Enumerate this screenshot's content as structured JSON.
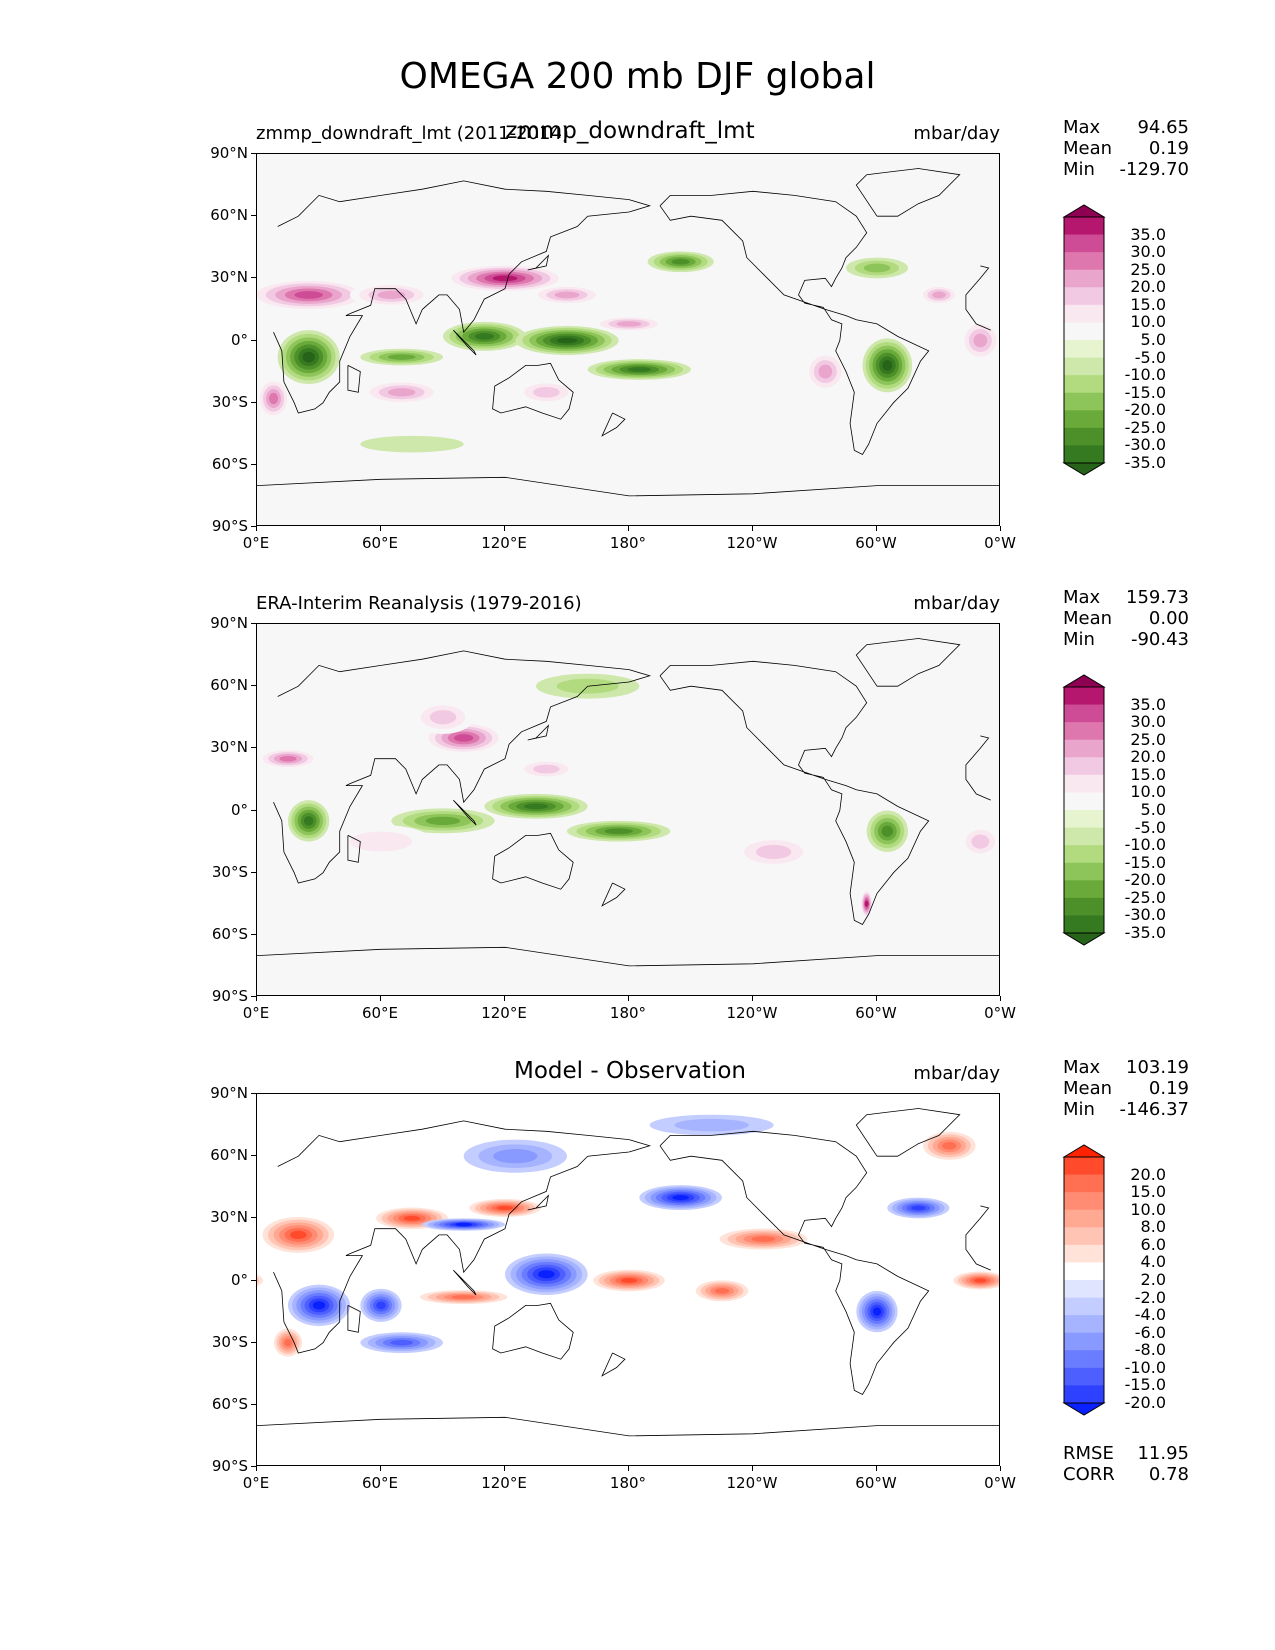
{
  "figure": {
    "title": "OMEGA 200 mb DJF global",
    "lat_ticks": [
      "90°N",
      "60°N",
      "30°N",
      "0°",
      "30°S",
      "60°S",
      "90°S"
    ],
    "lon_ticks": [
      "0°E",
      "60°E",
      "120°E",
      "180°",
      "120°W",
      "60°W",
      "0°W"
    ]
  },
  "panels": [
    {
      "id": "model",
      "left_title": "zmmp_downdraft_lmt (2011-2014)",
      "center_title": "zmmp_downdraft_lmt",
      "units": "mbar/day",
      "stats": [
        {
          "label": "Max",
          "value": "94.65"
        },
        {
          "label": "Mean",
          "value": "0.19"
        },
        {
          "label": "Min",
          "value": "-129.70"
        }
      ],
      "colorbar": {
        "labels": [
          "35.0",
          "30.0",
          "25.0",
          "20.0",
          "15.0",
          "10.0",
          "5.0",
          "-5.0",
          "-10.0",
          "-15.0",
          "-20.0",
          "-25.0",
          "-30.0",
          "-35.0"
        ],
        "colors": [
          "#8e0152",
          "#b6176e",
          "#ce4c96",
          "#de77ae",
          "#eaa5cc",
          "#f2c9e2",
          "#fae8f1",
          "#f7f7f7",
          "#e6f5d0",
          "#cde8aa",
          "#b1db7e",
          "#8dc55a",
          "#6aaa3a",
          "#4d8f29",
          "#357a20",
          "#276419"
        ]
      }
    },
    {
      "id": "obs",
      "left_title": "ERA-Interim Reanalysis (1979-2016)",
      "center_title": "",
      "units": "mbar/day",
      "stats": [
        {
          "label": "Max",
          "value": "159.73"
        },
        {
          "label": "Mean",
          "value": "0.00"
        },
        {
          "label": "Min",
          "value": "-90.43"
        }
      ],
      "colorbar": {
        "labels": [
          "35.0",
          "30.0",
          "25.0",
          "20.0",
          "15.0",
          "10.0",
          "5.0",
          "-5.0",
          "-10.0",
          "-15.0",
          "-20.0",
          "-25.0",
          "-30.0",
          "-35.0"
        ],
        "colors": [
          "#8e0152",
          "#b6176e",
          "#ce4c96",
          "#de77ae",
          "#eaa5cc",
          "#f2c9e2",
          "#fae8f1",
          "#f7f7f7",
          "#e6f5d0",
          "#cde8aa",
          "#b1db7e",
          "#8dc55a",
          "#6aaa3a",
          "#4d8f29",
          "#357a20",
          "#276419"
        ]
      }
    },
    {
      "id": "diff",
      "left_title": "",
      "center_title": "Model - Observation",
      "units": "mbar/day",
      "stats": [
        {
          "label": "Max",
          "value": "103.19"
        },
        {
          "label": "Mean",
          "value": "0.19"
        },
        {
          "label": "Min",
          "value": "-146.37"
        }
      ],
      "extra_stats": [
        {
          "label": "RMSE",
          "value": "11.95"
        },
        {
          "label": "CORR",
          "value": "0.78"
        }
      ],
      "colorbar": {
        "labels": [
          "20.0",
          "15.0",
          "10.0",
          "8.0",
          "6.0",
          "4.0",
          "2.0",
          "-2.0",
          "-4.0",
          "-6.0",
          "-8.0",
          "-10.0",
          "-15.0",
          "-20.0"
        ],
        "colors": [
          "#ff2200",
          "#ff4b2b",
          "#ff6f52",
          "#ff8c73",
          "#ffa892",
          "#ffc4b3",
          "#ffe2d8",
          "#ffffff",
          "#e0e5ff",
          "#c4cdff",
          "#a6b4ff",
          "#8899ff",
          "#6a7cff",
          "#4d60ff",
          "#2d41ff",
          "#0a21ff"
        ]
      }
    }
  ],
  "chart_data": [
    {
      "type": "heatmap",
      "title": "zmmp_downdraft_lmt",
      "subtitle": "zmmp_downdraft_lmt (2011-2014)",
      "variable": "OMEGA 200 mb DJF",
      "units": "mbar/day",
      "x_range": [
        0,
        360
      ],
      "y_range": [
        -90,
        90
      ],
      "levels": [
        -35,
        -30,
        -25,
        -20,
        -15,
        -10,
        -5,
        5,
        10,
        15,
        20,
        25,
        30,
        35
      ],
      "features": [
        {
          "lon": 25,
          "lat": 22,
          "value": 30,
          "rx": 30,
          "ry": 8
        },
        {
          "lon": 120,
          "lat": 30,
          "value": 35,
          "rx": 30,
          "ry": 7
        },
        {
          "lon": 65,
          "lat": 22,
          "value": 20,
          "rx": 20,
          "ry": 6
        },
        {
          "lon": 150,
          "lat": 22,
          "value": 22,
          "rx": 18,
          "ry": 5
        },
        {
          "lon": 25,
          "lat": -8,
          "value": -35,
          "rx": 15,
          "ry": 13
        },
        {
          "lon": 70,
          "lat": -8,
          "value": -20,
          "rx": 20,
          "ry": 4
        },
        {
          "lon": 110,
          "lat": 2,
          "value": -30,
          "rx": 20,
          "ry": 7
        },
        {
          "lon": 150,
          "lat": 0,
          "value": -35,
          "rx": 25,
          "ry": 7
        },
        {
          "lon": 185,
          "lat": -14,
          "value": -30,
          "rx": 25,
          "ry": 5
        },
        {
          "lon": 305,
          "lat": -12,
          "value": -35,
          "rx": 12,
          "ry": 13
        },
        {
          "lon": 205,
          "lat": 38,
          "value": -25,
          "rx": 16,
          "ry": 5
        },
        {
          "lon": 300,
          "lat": 35,
          "value": -15,
          "rx": 15,
          "ry": 5
        },
        {
          "lon": 70,
          "lat": -25,
          "value": 20,
          "rx": 20,
          "ry": 6
        },
        {
          "lon": 140,
          "lat": -25,
          "value": 15,
          "rx": 15,
          "ry": 6
        },
        {
          "lon": 180,
          "lat": 8,
          "value": 20,
          "rx": 18,
          "ry": 4
        },
        {
          "lon": 8,
          "lat": -28,
          "value": 25,
          "rx": 8,
          "ry": 10
        },
        {
          "lon": 350,
          "lat": 0,
          "value": 22,
          "rx": 10,
          "ry": 10
        },
        {
          "lon": 275,
          "lat": -15,
          "value": 20,
          "rx": 10,
          "ry": 10
        },
        {
          "lon": 330,
          "lat": 22,
          "value": 20,
          "rx": 10,
          "ry": 5
        },
        {
          "lon": 75,
          "lat": -50,
          "value": -8,
          "rx": 25,
          "ry": 4
        }
      ]
    },
    {
      "type": "heatmap",
      "title": "ERA-Interim Reanalysis (1979-2016)",
      "variable": "OMEGA 200 mb DJF",
      "units": "mbar/day",
      "x_range": [
        0,
        360
      ],
      "y_range": [
        -90,
        90
      ],
      "levels": [
        -35,
        -30,
        -25,
        -20,
        -15,
        -10,
        -5,
        5,
        10,
        15,
        20,
        25,
        30,
        35
      ],
      "features": [
        {
          "lon": 100,
          "lat": 35,
          "value": 30,
          "rx": 20,
          "ry": 8
        },
        {
          "lon": 15,
          "lat": 25,
          "value": 25,
          "rx": 15,
          "ry": 5
        },
        {
          "lon": 90,
          "lat": 45,
          "value": 15,
          "rx": 15,
          "ry": 8
        },
        {
          "lon": 140,
          "lat": 20,
          "value": 15,
          "rx": 15,
          "ry": 5
        },
        {
          "lon": 25,
          "lat": -5,
          "value": -30,
          "rx": 10,
          "ry": 10
        },
        {
          "lon": 90,
          "lat": -5,
          "value": -20,
          "rx": 25,
          "ry": 6
        },
        {
          "lon": 135,
          "lat": 2,
          "value": -30,
          "rx": 25,
          "ry": 6
        },
        {
          "lon": 175,
          "lat": -10,
          "value": -25,
          "rx": 25,
          "ry": 5
        },
        {
          "lon": 305,
          "lat": -10,
          "value": -25,
          "rx": 10,
          "ry": 10
        },
        {
          "lon": 60,
          "lat": -15,
          "value": 10,
          "rx": 25,
          "ry": 8
        },
        {
          "lon": 250,
          "lat": -20,
          "value": 15,
          "rx": 20,
          "ry": 8
        },
        {
          "lon": 295,
          "lat": -45,
          "value": 35,
          "rx": 3,
          "ry": 7
        },
        {
          "lon": 160,
          "lat": 60,
          "value": -10,
          "rx": 25,
          "ry": 6
        },
        {
          "lon": 350,
          "lat": -15,
          "value": 15,
          "rx": 10,
          "ry": 8
        }
      ]
    },
    {
      "type": "heatmap",
      "title": "Model - Observation",
      "units": "mbar/day",
      "x_range": [
        0,
        360
      ],
      "y_range": [
        -90,
        90
      ],
      "levels": [
        -20,
        -15,
        -10,
        -8,
        -6,
        -4,
        -2,
        2,
        4,
        6,
        8,
        10,
        15,
        20
      ],
      "rmse": 11.95,
      "corr": 0.78,
      "features": [
        {
          "lon": 20,
          "lat": 22,
          "value": 20,
          "rx": 20,
          "ry": 10
        },
        {
          "lon": 75,
          "lat": 30,
          "value": 20,
          "rx": 20,
          "ry": 6
        },
        {
          "lon": 120,
          "lat": 35,
          "value": 20,
          "rx": 20,
          "ry": 5
        },
        {
          "lon": 100,
          "lat": 27,
          "value": -20,
          "rx": 20,
          "ry": 3
        },
        {
          "lon": 30,
          "lat": -12,
          "value": -20,
          "rx": 15,
          "ry": 10
        },
        {
          "lon": 60,
          "lat": -12,
          "value": -15,
          "rx": 10,
          "ry": 8
        },
        {
          "lon": 140,
          "lat": 3,
          "value": -20,
          "rx": 20,
          "ry": 10
        },
        {
          "lon": 180,
          "lat": 0,
          "value": 20,
          "rx": 20,
          "ry": 6
        },
        {
          "lon": 225,
          "lat": -5,
          "value": 15,
          "rx": 15,
          "ry": 6
        },
        {
          "lon": 100,
          "lat": -8,
          "value": 15,
          "rx": 25,
          "ry": 4
        },
        {
          "lon": 205,
          "lat": 40,
          "value": -20,
          "rx": 20,
          "ry": 6
        },
        {
          "lon": 300,
          "lat": -15,
          "value": -20,
          "rx": 10,
          "ry": 10
        },
        {
          "lon": 320,
          "lat": 35,
          "value": -15,
          "rx": 15,
          "ry": 5
        },
        {
          "lon": 350,
          "lat": 0,
          "value": 20,
          "rx": 15,
          "ry": 5
        },
        {
          "lon": 70,
          "lat": -30,
          "value": -10,
          "rx": 20,
          "ry": 5
        },
        {
          "lon": 15,
          "lat": -30,
          "value": 15,
          "rx": 8,
          "ry": 8
        },
        {
          "lon": 125,
          "lat": 60,
          "value": -6,
          "rx": 25,
          "ry": 8
        },
        {
          "lon": 220,
          "lat": 75,
          "value": -4,
          "rx": 30,
          "ry": 5
        },
        {
          "lon": 335,
          "lat": 65,
          "value": 15,
          "rx": 15,
          "ry": 8
        },
        {
          "lon": 245,
          "lat": 20,
          "value": 15,
          "rx": 25,
          "ry": 6
        }
      ]
    }
  ]
}
